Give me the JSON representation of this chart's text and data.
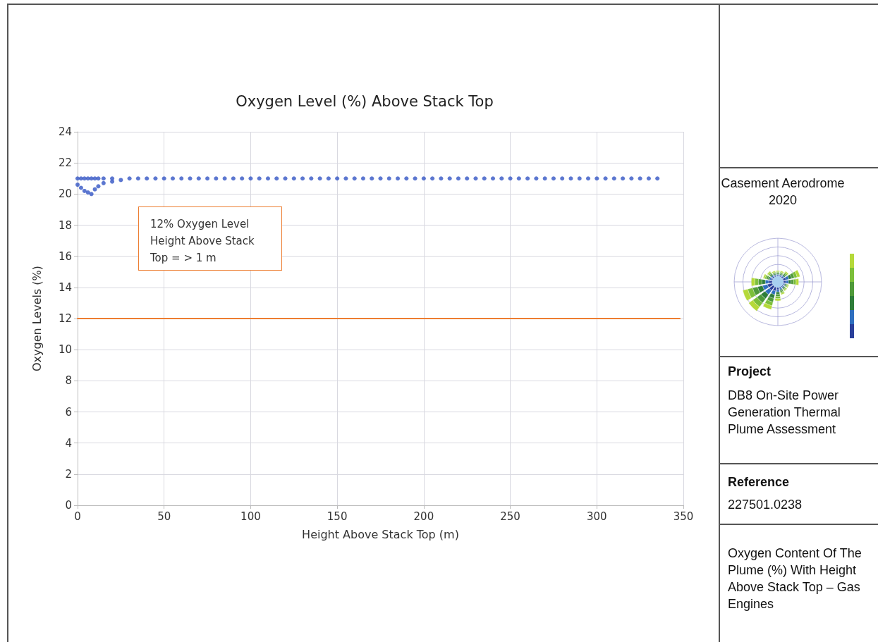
{
  "chart_data": {
    "type": "scatter",
    "title": "Oxygen Level (%) Above Stack Top",
    "xlabel": "Height Above Stack Top (m)",
    "ylabel": "Oxygen Levels (%)",
    "xlim": [
      0,
      350
    ],
    "xticks": [
      0,
      50,
      100,
      150,
      200,
      250,
      300,
      350
    ],
    "ylim": [
      0,
      24
    ],
    "yticks": [
      0,
      2,
      4,
      6,
      8,
      10,
      12,
      14,
      16,
      18,
      20,
      22,
      24
    ],
    "grid": true,
    "series": [
      {
        "color": "#3355c4",
        "marker": "circle",
        "x": [
          0,
          0,
          2,
          2,
          4,
          4,
          6,
          6,
          8,
          8,
          10,
          10,
          12,
          12,
          15,
          15,
          20,
          20,
          25,
          30,
          35,
          40,
          45,
          50,
          55,
          60,
          65,
          70,
          75,
          80,
          85,
          90,
          95,
          100,
          105,
          110,
          115,
          120,
          125,
          130,
          135,
          140,
          145,
          150,
          155,
          160,
          165,
          170,
          175,
          180,
          185,
          190,
          195,
          200,
          205,
          210,
          215,
          220,
          225,
          230,
          235,
          240,
          245,
          250,
          255,
          260,
          265,
          270,
          275,
          280,
          285,
          290,
          295,
          300,
          305,
          310,
          315,
          320,
          325,
          330,
          335
        ],
        "values": [
          21,
          20.6,
          21,
          20.4,
          21,
          20.2,
          21,
          20.1,
          21,
          20,
          21,
          20.3,
          21,
          20.5,
          21,
          20.7,
          21,
          20.8,
          20.9,
          21,
          21,
          21,
          21,
          21,
          21,
          21,
          21,
          21,
          21,
          21,
          21,
          21,
          21,
          21,
          21,
          21,
          21,
          21,
          21,
          21,
          21,
          21,
          21,
          21,
          21,
          21,
          21,
          21,
          21,
          21,
          21,
          21,
          21,
          21,
          21,
          21,
          21,
          21,
          21,
          21,
          21,
          21,
          21,
          21,
          21,
          21,
          21,
          21,
          21,
          21,
          21,
          21,
          21,
          21,
          21,
          21,
          21,
          21,
          21,
          21,
          21
        ]
      },
      {
        "type": "line",
        "color": "#ed7d31",
        "marker": "none",
        "x": [
          0,
          348
        ],
        "values": [
          12,
          12
        ]
      }
    ],
    "annotations": [
      "12% Oxygen Level Height Above Stack Top = > 1 m",
      "Casement Aerodrome 2020",
      "Project",
      "DB8 On-Site Power Generation Thermal Plume Assessment",
      "Reference",
      "227501.0238",
      "Oxygen Content Of The Plume (%) With Height Above Stack Top – Gas Engines"
    ]
  }
}
